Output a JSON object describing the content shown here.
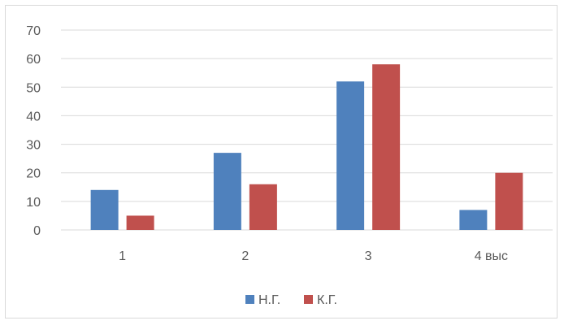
{
  "chart_data": {
    "type": "bar",
    "title": "",
    "xlabel": "",
    "ylabel": "",
    "categories": [
      "1",
      "2",
      "3",
      "4 выс"
    ],
    "series": [
      {
        "name": "Н.Г.",
        "values": [
          14,
          27,
          52,
          7
        ],
        "color": "#4f81bd"
      },
      {
        "name": "К.Г.",
        "values": [
          5,
          16,
          58,
          20
        ],
        "color": "#c0504d"
      }
    ],
    "ylim": [
      0,
      70
    ],
    "yticks": [
      0,
      10,
      20,
      30,
      40,
      50,
      60,
      70
    ],
    "grid": true,
    "legend_position": "bottom",
    "gridline_color": "#d9d9d9"
  }
}
